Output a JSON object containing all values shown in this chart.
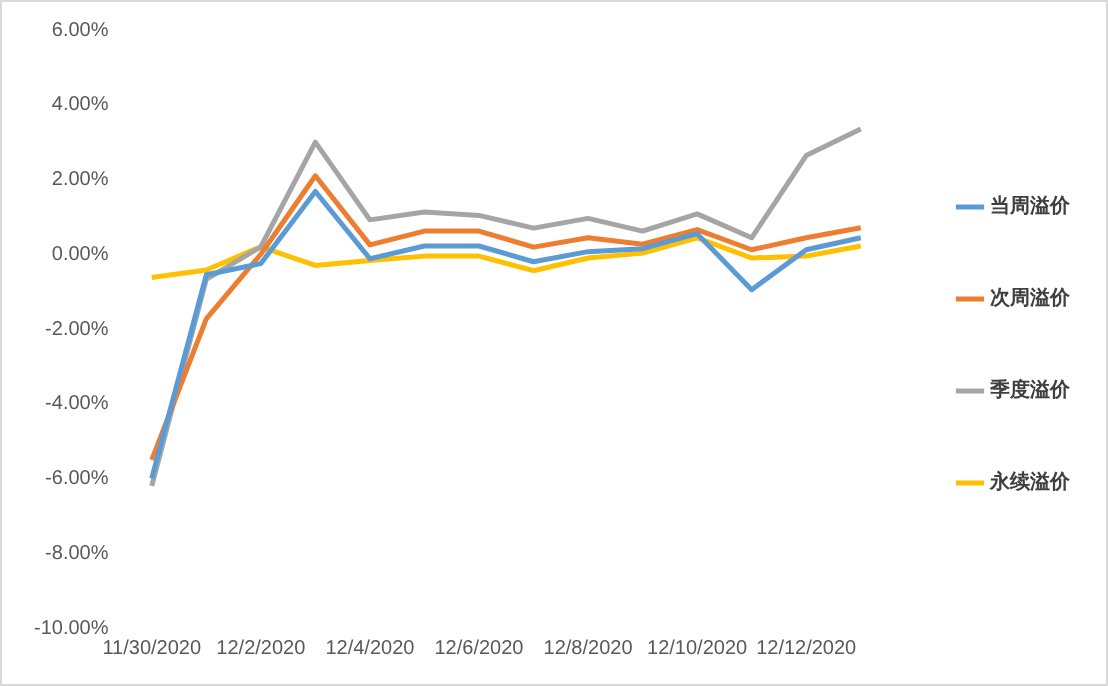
{
  "chart_data": {
    "type": "line",
    "categories": [
      "11/30/2020",
      null,
      "12/2/2020",
      null,
      "12/4/2020",
      null,
      "12/6/2020",
      null,
      "12/8/2020",
      null,
      "12/10/2020",
      null,
      "12/12/2020",
      null
    ],
    "series": [
      {
        "name": "当周溢价",
        "color": "#5b9bd5",
        "values": [
          -6.0,
          -0.55,
          -0.25,
          1.68,
          -0.12,
          0.22,
          0.22,
          -0.2,
          0.07,
          0.15,
          0.55,
          -0.95,
          0.12,
          0.44
        ]
      },
      {
        "name": "次周溢价",
        "color": "#ed7d31",
        "values": [
          -5.5,
          -1.73,
          0.0,
          2.1,
          0.25,
          0.62,
          0.62,
          0.19,
          0.44,
          0.27,
          0.66,
          0.12,
          0.44,
          0.71
        ]
      },
      {
        "name": "季度溢价",
        "color": "#a5a5a5",
        "values": [
          -6.2,
          -0.67,
          0.2,
          3.0,
          0.92,
          1.13,
          1.04,
          0.7,
          0.96,
          0.62,
          1.08,
          0.44,
          2.64,
          3.35
        ]
      },
      {
        "name": "永续溢价",
        "color": "#ffc000",
        "values": [
          -0.62,
          -0.42,
          0.2,
          -0.3,
          -0.17,
          -0.05,
          -0.05,
          -0.44,
          -0.1,
          0.03,
          0.44,
          -0.1,
          -0.05,
          0.22
        ]
      }
    ],
    "ylim": [
      -10,
      6
    ],
    "yticks": [
      {
        "value": -10,
        "label": "-10.00%"
      },
      {
        "value": -8,
        "label": "-8.00%"
      },
      {
        "value": -6,
        "label": "-6.00%"
      },
      {
        "value": -4,
        "label": "-4.00%"
      },
      {
        "value": -2,
        "label": "-2.00%"
      },
      {
        "value": 0,
        "label": "0.00%"
      },
      {
        "value": 2,
        "label": "2.00%"
      },
      {
        "value": 4,
        "label": "4.00%"
      },
      {
        "value": 6,
        "label": "6.00%"
      }
    ],
    "grid": false,
    "legend": "right",
    "marker": "none",
    "line_style": "solid"
  }
}
